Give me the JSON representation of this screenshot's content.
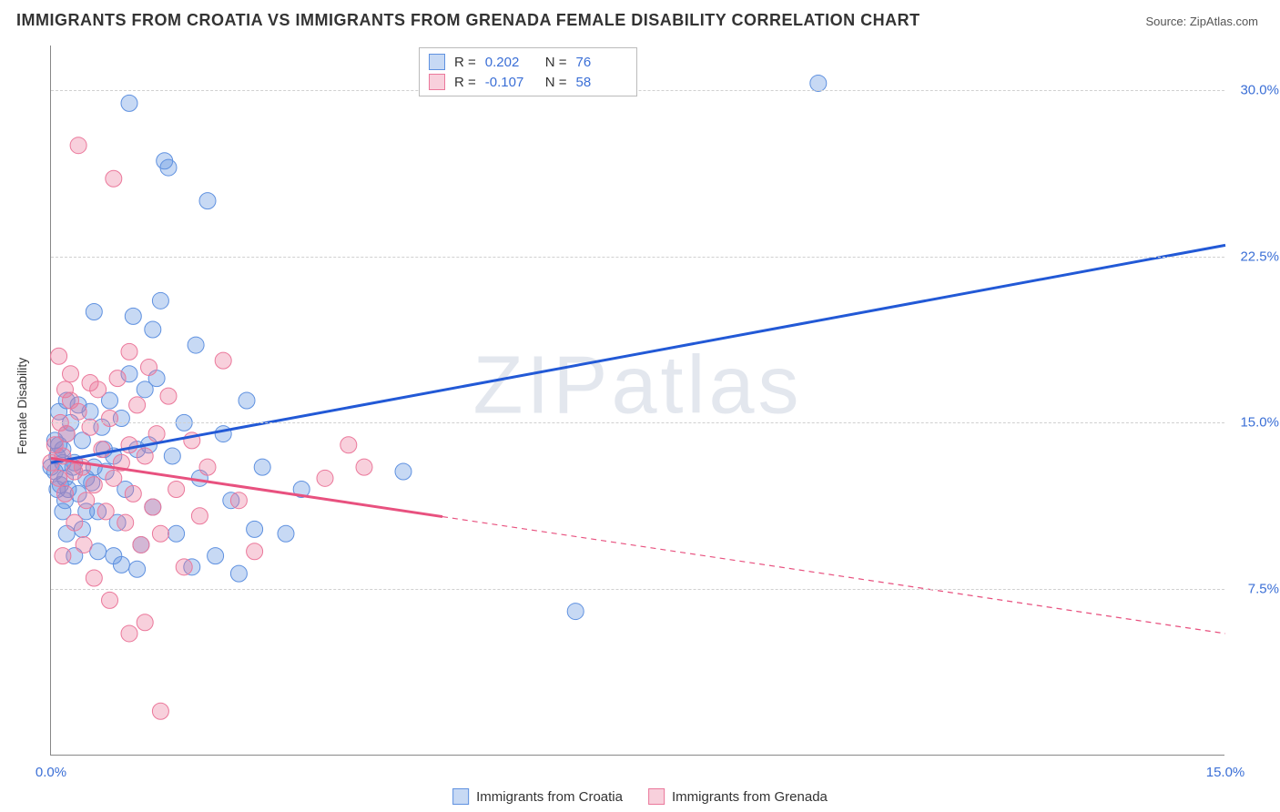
{
  "title": "IMMIGRANTS FROM CROATIA VS IMMIGRANTS FROM GRENADA FEMALE DISABILITY CORRELATION CHART",
  "source_label": "Source: ZipAtlas.com",
  "y_axis_title": "Female Disability",
  "watermark": {
    "prefix": "ZIP",
    "suffix": "atlas"
  },
  "chart": {
    "type": "scatter",
    "background_color": "#ffffff",
    "grid_color": "#d0d0d0",
    "axis_color": "#888888",
    "xlim": [
      0,
      15
    ],
    "ylim": [
      0,
      32
    ],
    "x_ticks": [
      0,
      15
    ],
    "x_tick_labels": [
      "0.0%",
      "15.0%"
    ],
    "y_ticks": [
      7.5,
      15.0,
      22.5,
      30.0
    ],
    "y_tick_labels": [
      "7.5%",
      "15.0%",
      "22.5%",
      "30.0%"
    ],
    "tick_label_color": "#3b6fd6",
    "tick_fontsize": 15,
    "title_fontsize": 18,
    "series": [
      {
        "name": "Immigrants from Croatia",
        "R": "0.202",
        "N": "76",
        "color_fill": "rgba(95,145,224,0.35)",
        "color_stroke": "#5f91e0",
        "line_color": "#2259d6",
        "line_width": 3,
        "marker_radius": 9,
        "trend": {
          "x1": 0,
          "y1": 13.2,
          "x2": 15,
          "y2": 23.0,
          "dashed_from": null
        },
        "points": [
          [
            0.0,
            13.0
          ],
          [
            0.05,
            12.8
          ],
          [
            0.08,
            13.5
          ],
          [
            0.1,
            14.0
          ],
          [
            0.12,
            12.2
          ],
          [
            0.15,
            13.8
          ],
          [
            0.18,
            11.5
          ],
          [
            0.2,
            14.5
          ],
          [
            0.22,
            12.0
          ],
          [
            0.25,
            15.0
          ],
          [
            0.3,
            13.2
          ],
          [
            0.35,
            11.8
          ],
          [
            0.4,
            14.2
          ],
          [
            0.45,
            12.5
          ],
          [
            0.5,
            15.5
          ],
          [
            0.55,
            13.0
          ],
          [
            0.6,
            11.0
          ],
          [
            0.65,
            14.8
          ],
          [
            0.7,
            12.8
          ],
          [
            0.75,
            16.0
          ],
          [
            0.8,
            13.5
          ],
          [
            0.85,
            10.5
          ],
          [
            0.9,
            15.2
          ],
          [
            0.95,
            12.0
          ],
          [
            1.0,
            29.4
          ],
          [
            1.05,
            19.8
          ],
          [
            1.1,
            13.8
          ],
          [
            1.15,
            9.5
          ],
          [
            1.2,
            16.5
          ],
          [
            1.25,
            14.0
          ],
          [
            1.3,
            11.2
          ],
          [
            1.35,
            17.0
          ],
          [
            1.4,
            20.5
          ],
          [
            1.45,
            26.8
          ],
          [
            1.5,
            26.5
          ],
          [
            1.55,
            13.5
          ],
          [
            1.6,
            10.0
          ],
          [
            1.7,
            15.0
          ],
          [
            1.8,
            8.5
          ],
          [
            1.85,
            18.5
          ],
          [
            1.9,
            12.5
          ],
          [
            2.0,
            25.0
          ],
          [
            2.1,
            9.0
          ],
          [
            2.2,
            14.5
          ],
          [
            2.3,
            11.5
          ],
          [
            2.4,
            8.2
          ],
          [
            2.5,
            16.0
          ],
          [
            2.6,
            10.2
          ],
          [
            2.7,
            13.0
          ],
          [
            3.0,
            10.0
          ],
          [
            3.2,
            12.0
          ],
          [
            0.55,
            20.0
          ],
          [
            0.3,
            9.0
          ],
          [
            0.4,
            10.2
          ],
          [
            0.15,
            11.0
          ],
          [
            0.2,
            10.0
          ],
          [
            6.7,
            6.5
          ],
          [
            9.8,
            30.3
          ],
          [
            4.5,
            12.8
          ],
          [
            1.0,
            17.2
          ],
          [
            1.3,
            19.2
          ],
          [
            0.1,
            15.5
          ],
          [
            0.2,
            16.0
          ],
          [
            0.05,
            14.2
          ],
          [
            0.6,
            9.2
          ],
          [
            0.8,
            9.0
          ],
          [
            0.9,
            8.6
          ],
          [
            1.1,
            8.4
          ],
          [
            0.35,
            15.8
          ],
          [
            0.28,
            13.0
          ],
          [
            0.18,
            12.5
          ],
          [
            0.45,
            11.0
          ],
          [
            0.52,
            12.3
          ],
          [
            0.68,
            13.8
          ],
          [
            0.15,
            13.2
          ],
          [
            0.08,
            12.0
          ]
        ]
      },
      {
        "name": "Immigrants from Grenada",
        "R": "-0.107",
        "N": "58",
        "color_fill": "rgba(235,120,155,0.35)",
        "color_stroke": "#eb789b",
        "line_color": "#e8517f",
        "line_width": 3,
        "marker_radius": 9,
        "trend": {
          "x1": 0,
          "y1": 13.4,
          "x2": 15,
          "y2": 5.5,
          "dashed_from": 5.0
        },
        "points": [
          [
            0.0,
            13.2
          ],
          [
            0.05,
            14.0
          ],
          [
            0.1,
            12.5
          ],
          [
            0.12,
            15.0
          ],
          [
            0.15,
            13.5
          ],
          [
            0.18,
            11.8
          ],
          [
            0.2,
            14.5
          ],
          [
            0.25,
            16.0
          ],
          [
            0.3,
            12.8
          ],
          [
            0.35,
            15.5
          ],
          [
            0.4,
            13.0
          ],
          [
            0.45,
            11.5
          ],
          [
            0.5,
            14.8
          ],
          [
            0.55,
            12.2
          ],
          [
            0.6,
            16.5
          ],
          [
            0.65,
            13.8
          ],
          [
            0.7,
            11.0
          ],
          [
            0.75,
            15.2
          ],
          [
            0.8,
            12.5
          ],
          [
            0.85,
            17.0
          ],
          [
            0.9,
            13.2
          ],
          [
            0.95,
            10.5
          ],
          [
            1.0,
            14.0
          ],
          [
            1.05,
            11.8
          ],
          [
            1.1,
            15.8
          ],
          [
            1.15,
            9.5
          ],
          [
            1.2,
            13.5
          ],
          [
            1.25,
            17.5
          ],
          [
            1.3,
            11.2
          ],
          [
            1.35,
            14.5
          ],
          [
            1.4,
            10.0
          ],
          [
            1.5,
            16.2
          ],
          [
            1.6,
            12.0
          ],
          [
            1.7,
            8.5
          ],
          [
            1.8,
            14.2
          ],
          [
            1.9,
            10.8
          ],
          [
            2.0,
            13.0
          ],
          [
            2.2,
            17.8
          ],
          [
            2.4,
            11.5
          ],
          [
            2.6,
            9.2
          ],
          [
            0.35,
            27.5
          ],
          [
            0.8,
            26.0
          ],
          [
            0.1,
            18.0
          ],
          [
            0.25,
            17.2
          ],
          [
            0.5,
            16.8
          ],
          [
            1.0,
            18.2
          ],
          [
            0.15,
            9.0
          ],
          [
            0.55,
            8.0
          ],
          [
            0.75,
            7.0
          ],
          [
            1.0,
            5.5
          ],
          [
            1.2,
            6.0
          ],
          [
            1.4,
            2.0
          ],
          [
            3.5,
            12.5
          ],
          [
            4.0,
            13.0
          ],
          [
            3.8,
            14.0
          ],
          [
            0.3,
            10.5
          ],
          [
            0.42,
            9.5
          ],
          [
            0.18,
            16.5
          ]
        ]
      }
    ]
  },
  "legend_top": {
    "R_label": "R  =",
    "N_label": "N  ="
  },
  "legend_bottom_labels": [
    "Immigrants from Croatia",
    "Immigrants from Grenada"
  ]
}
